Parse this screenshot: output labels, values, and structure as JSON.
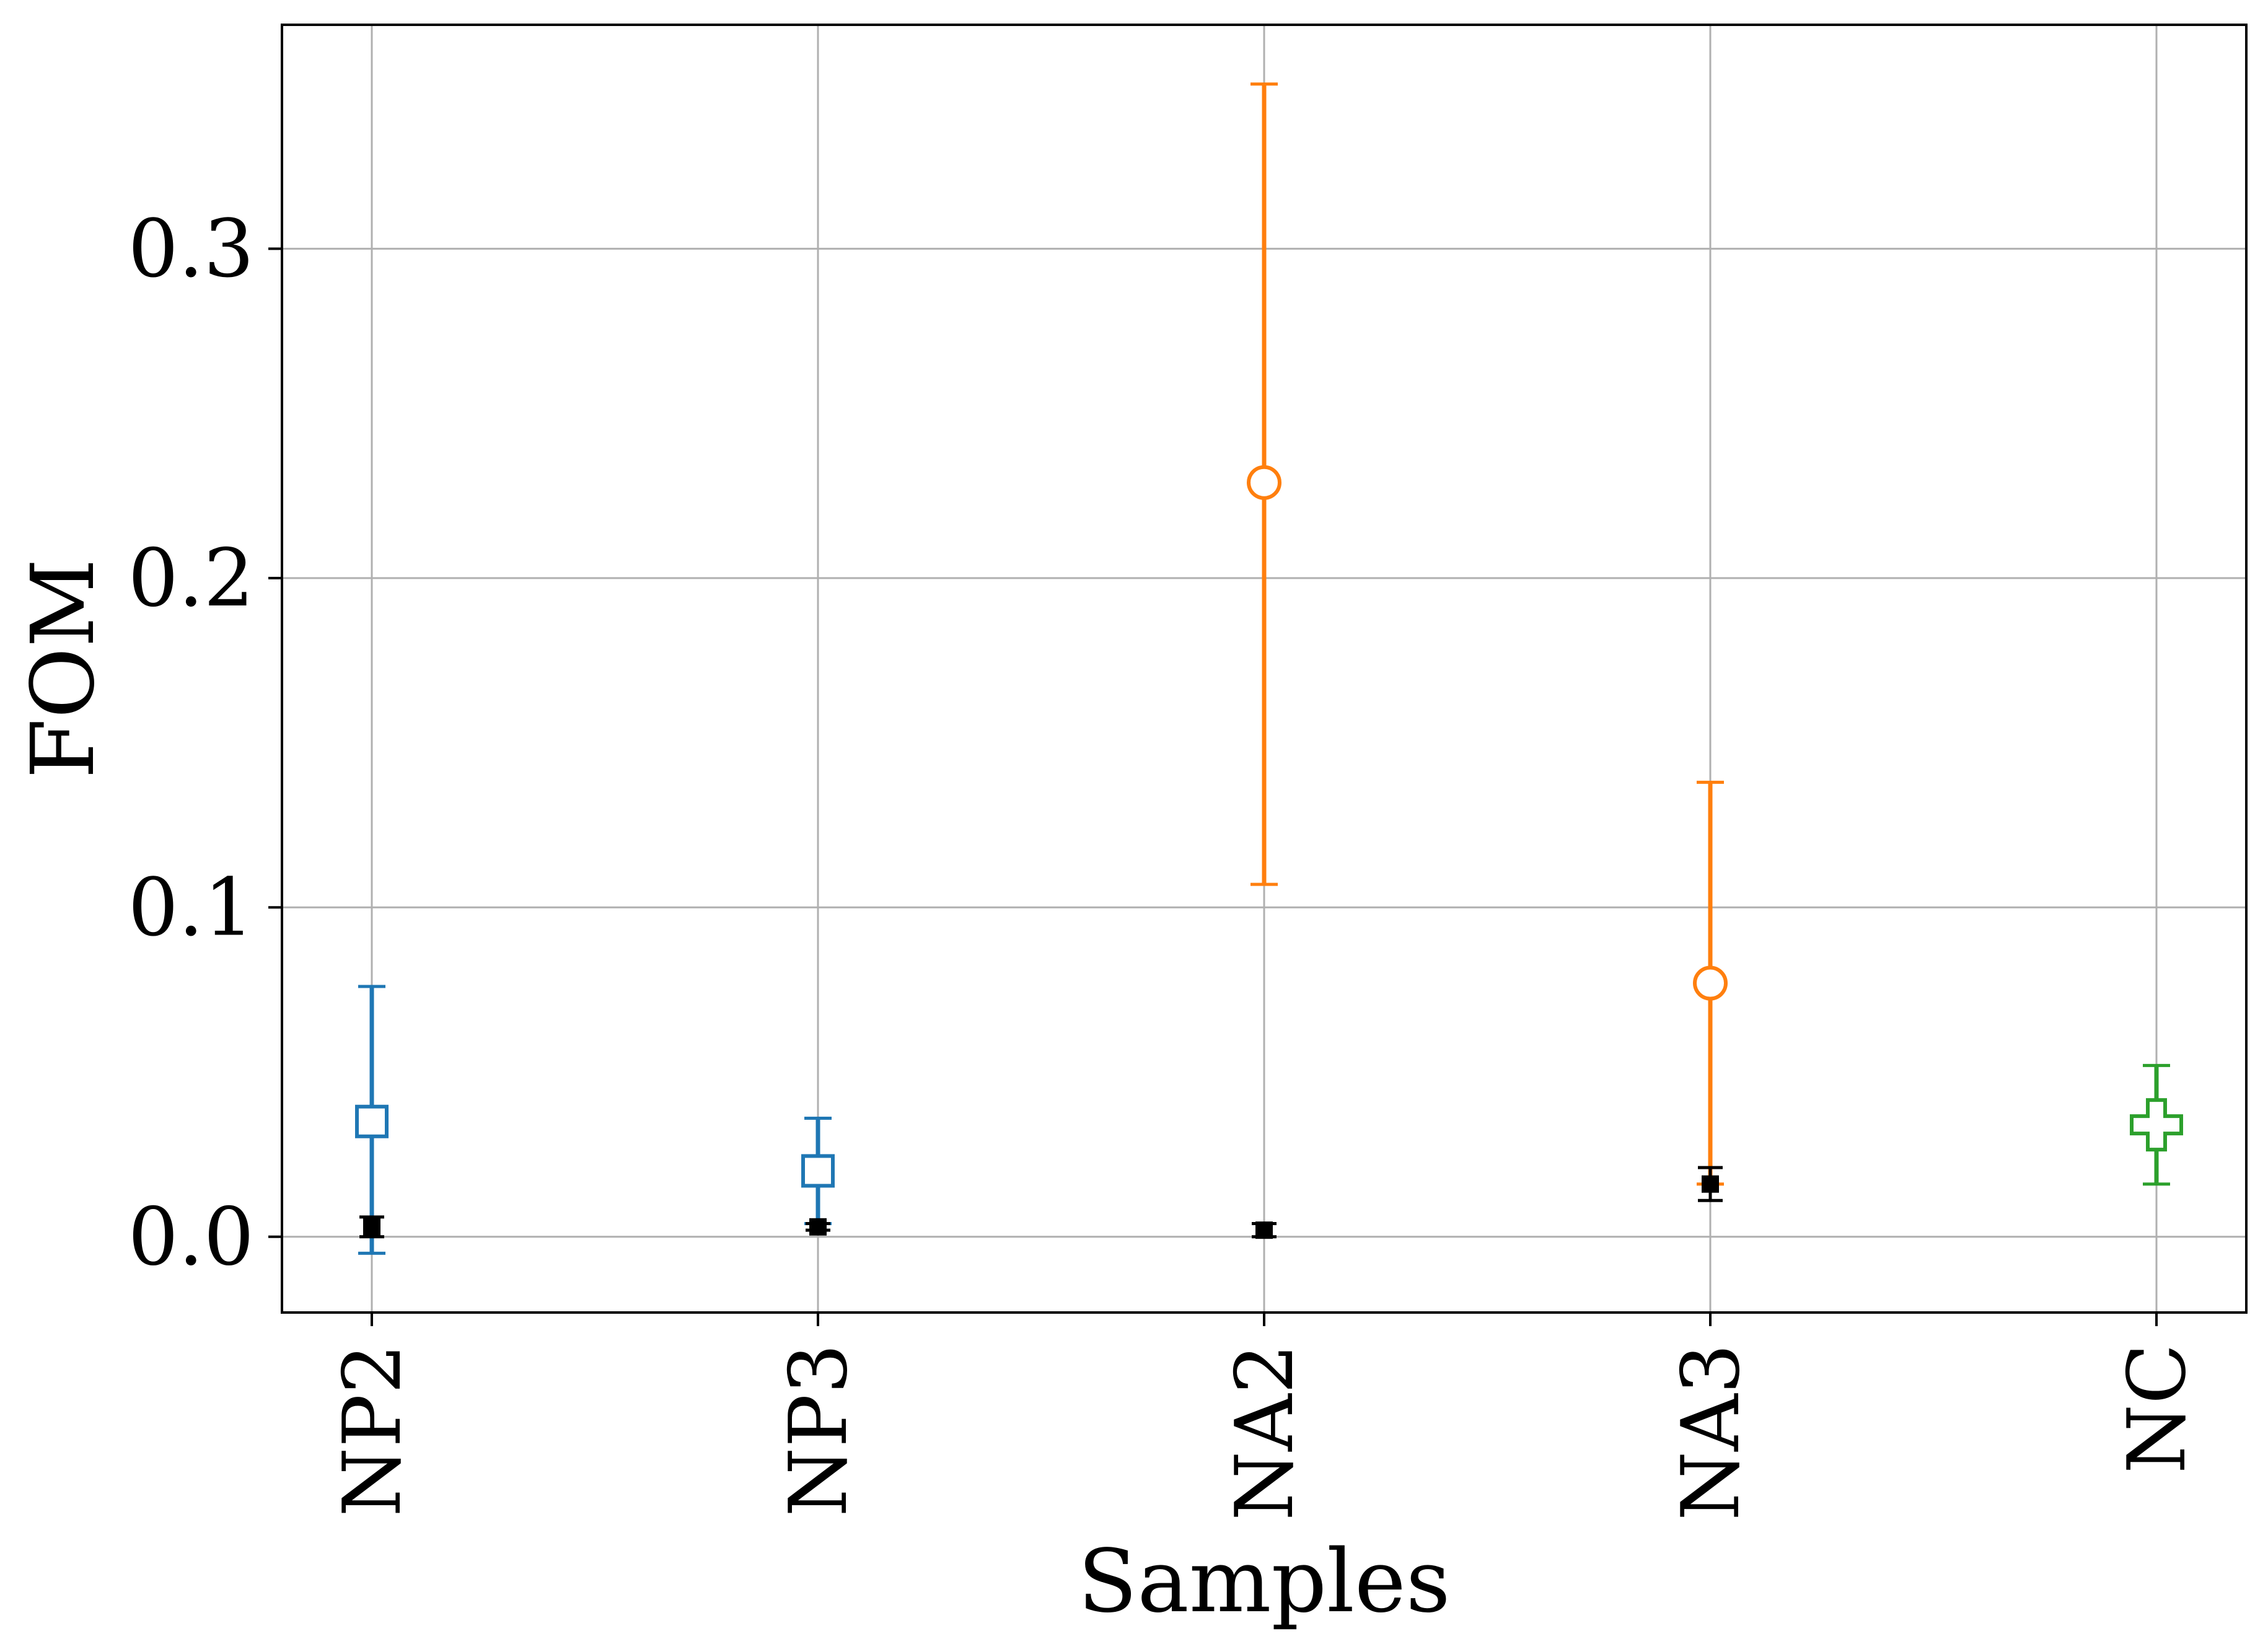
{
  "chart_data": {
    "type": "scatter",
    "title": "",
    "xlabel": "Samples",
    "ylabel": "FOM",
    "categories": [
      "NP2",
      "NP3",
      "NA2",
      "NA3",
      "NC"
    ],
    "ylim": [
      -0.023,
      0.368
    ],
    "yticks": [
      "0.0",
      "0.1",
      "0.2",
      "0.3"
    ],
    "grid": true,
    "legend": "none",
    "colors": {
      "blue": "#1f77b4",
      "orange": "#ff7f0e",
      "green": "#2ca02c",
      "black": "#000000",
      "grid": "#b0b0b0"
    },
    "series": [
      {
        "marker": "open-square",
        "color": "#1f77b4",
        "points": [
          {
            "category": "NP2",
            "y": 0.035,
            "y_low": -0.005,
            "y_high": 0.076
          },
          {
            "category": "NP3",
            "y": 0.02,
            "y_low": 0.004,
            "y_high": 0.036
          }
        ]
      },
      {
        "marker": "open-circle",
        "color": "#ff7f0e",
        "points": [
          {
            "category": "NA2",
            "y": 0.229,
            "y_low": 0.107,
            "y_high": 0.35
          },
          {
            "category": "NA3",
            "y": 0.077,
            "y_low": 0.016,
            "y_high": 0.138
          }
        ]
      },
      {
        "marker": "open-plus",
        "color": "#2ca02c",
        "points": [
          {
            "category": "NC",
            "y": 0.034,
            "y_low": 0.016,
            "y_high": 0.052
          }
        ]
      },
      {
        "marker": "filled-square",
        "color": "#000000",
        "points": [
          {
            "category": "NP2",
            "y": 0.003,
            "y_low": 0.0,
            "y_high": 0.006
          },
          {
            "category": "NP3",
            "y": 0.003,
            "y_low": 0.002,
            "y_high": 0.004
          },
          {
            "category": "NA2",
            "y": 0.002,
            "y_low": 0.0,
            "y_high": 0.004
          },
          {
            "category": "NA3",
            "y": 0.016,
            "y_low": 0.011,
            "y_high": 0.021
          }
        ]
      }
    ]
  }
}
